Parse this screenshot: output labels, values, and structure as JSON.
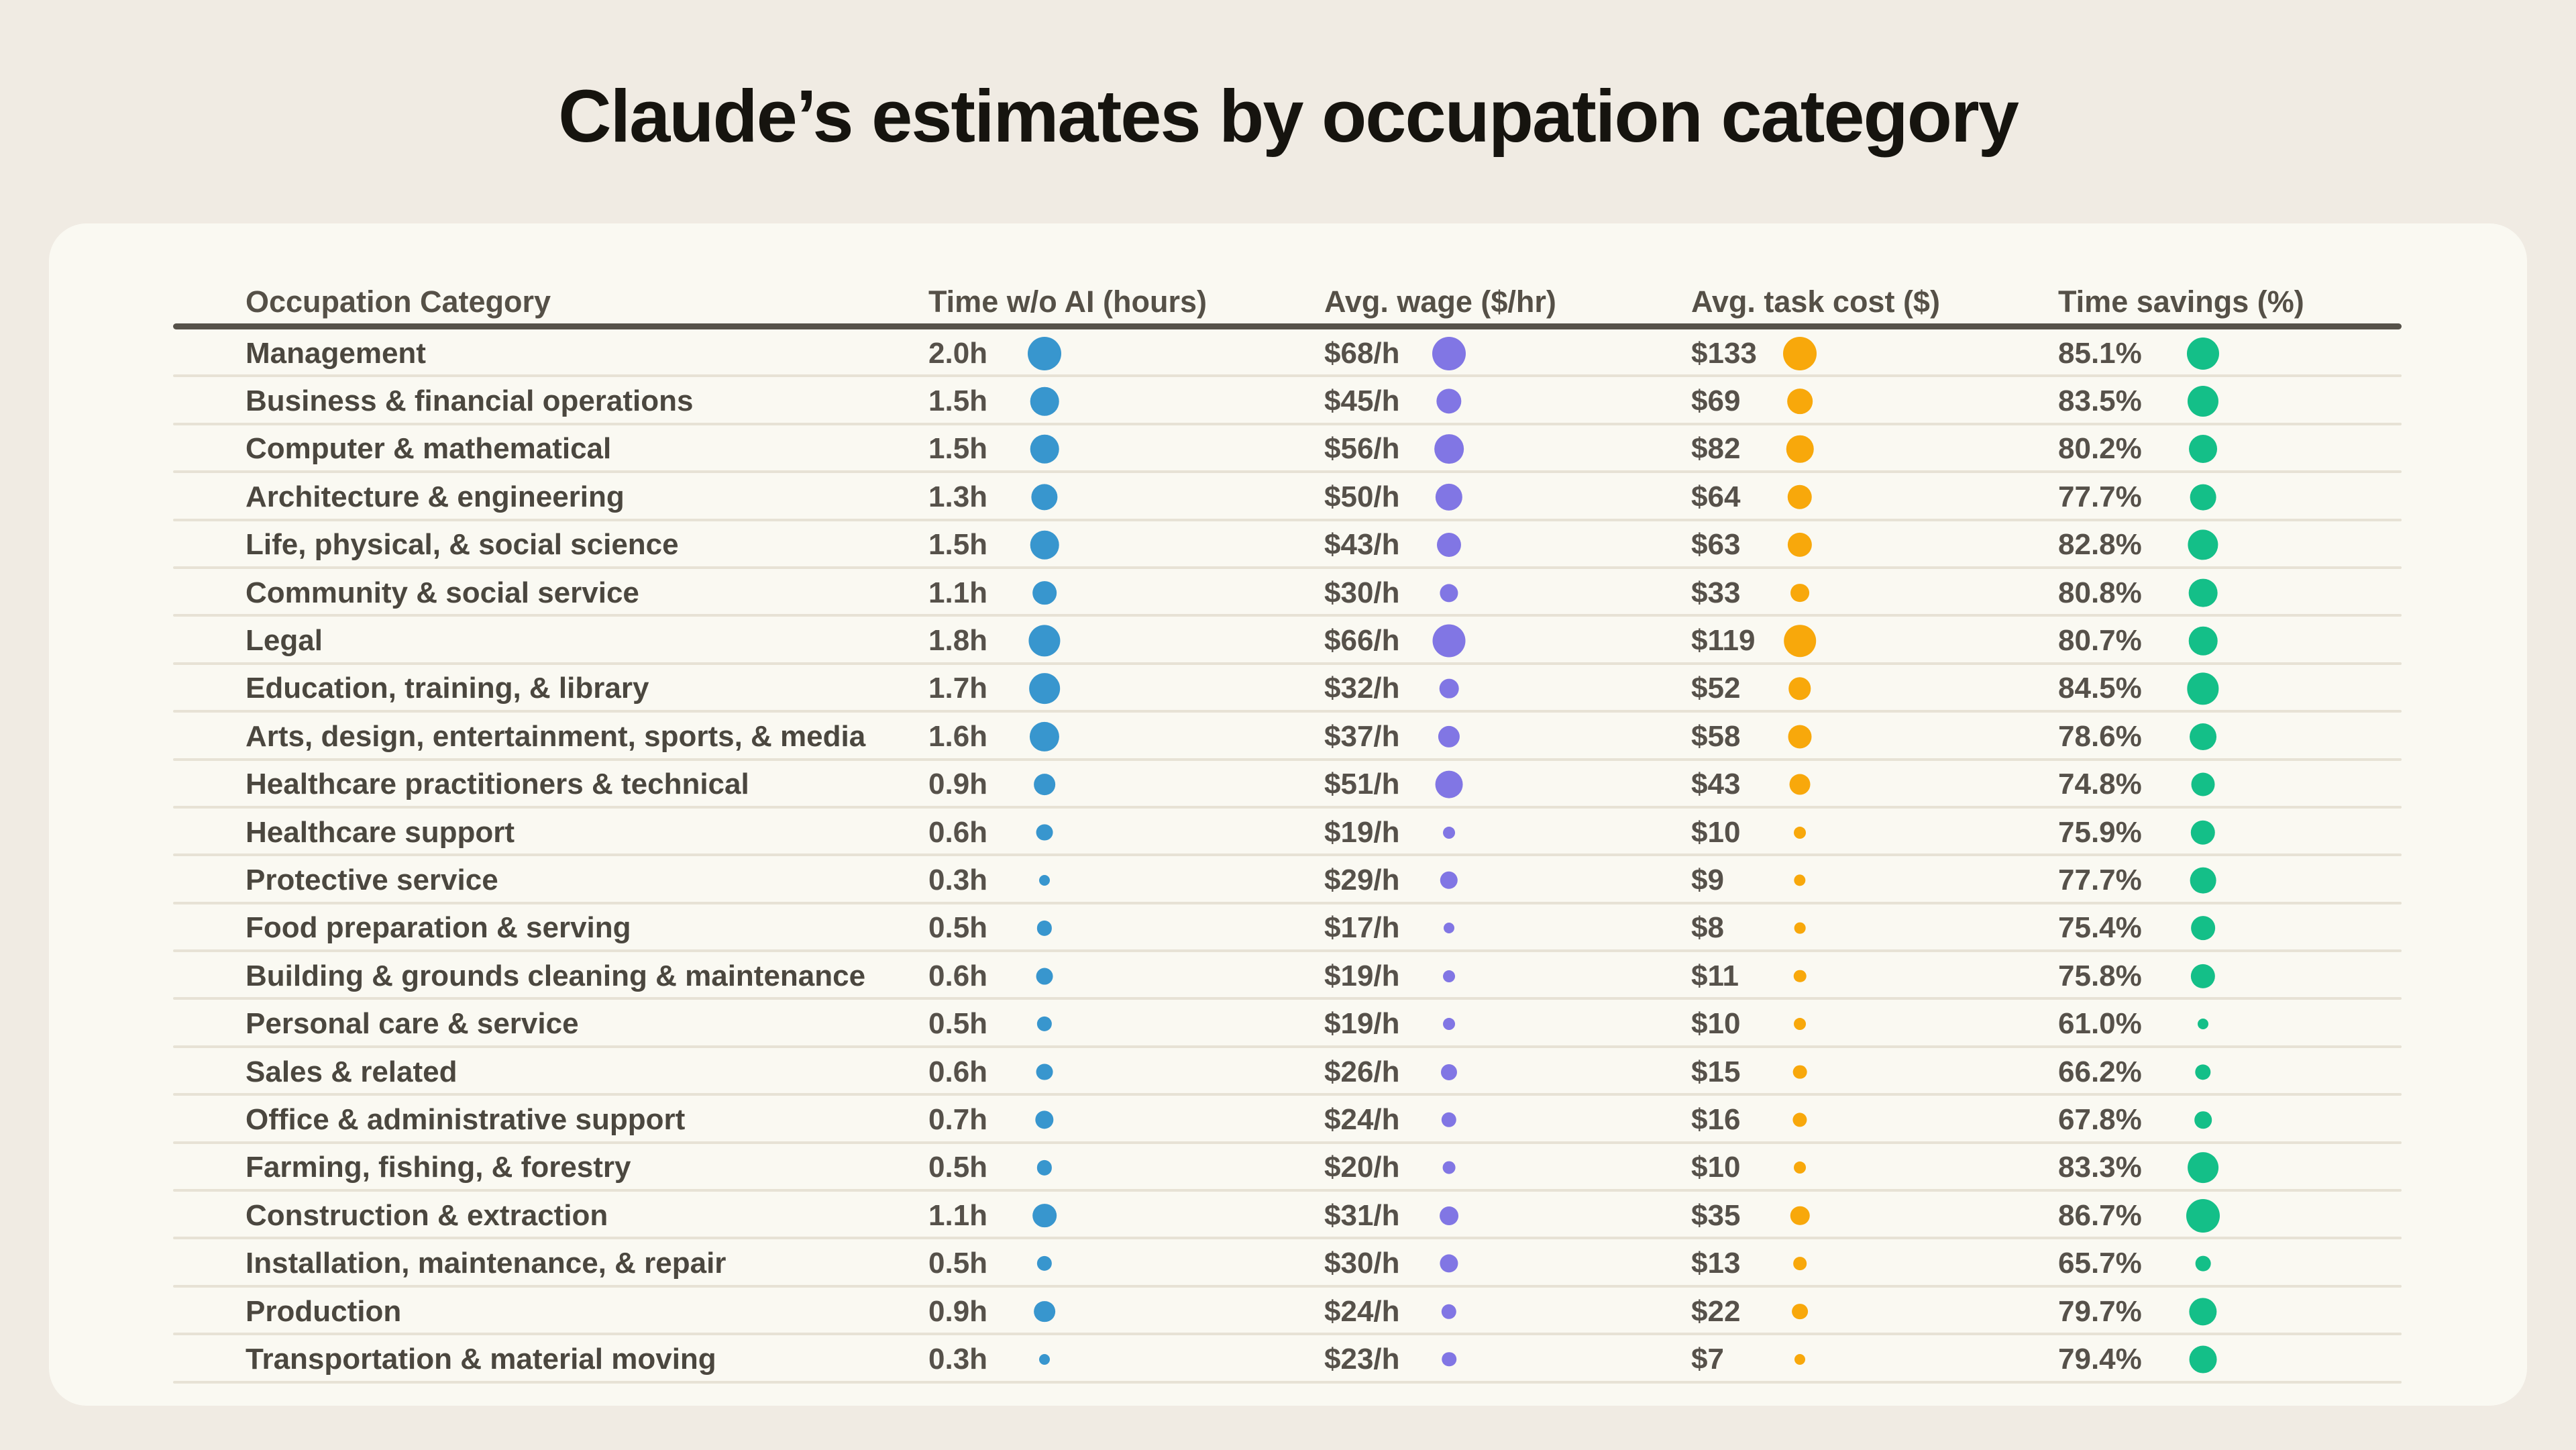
{
  "title": "Claude’s estimates by occupation category",
  "colors": {
    "time_dot": "#3896ce",
    "wage_dot": "#8176e4",
    "cost_dot": "#f8a80b",
    "savings_dot": "#14bf88",
    "page_bg": "#f0ebe3",
    "card_bg": "#faf9f2",
    "header_rule": "#56524a",
    "row_rule": "#e7e2d5",
    "title_text": "#16140f",
    "header_text": "#555047",
    "label_text": "#4b473f",
    "value_text": "#56514a"
  },
  "table": {
    "headers": [
      "Occupation Category",
      "Time w/o AI (hours)",
      "Avg. wage ($/hr)",
      "Avg. task cost ($)",
      "Time savings (%)"
    ],
    "rows": [
      {
        "label": "Management",
        "time": "2.0h",
        "time_v": 2.0,
        "wage": "$68/h",
        "wage_v": 68,
        "cost": "$133",
        "cost_v": 133,
        "savings": "85.1%",
        "savings_v": 85.1
      },
      {
        "label": "Business & financial operations",
        "time": "1.5h",
        "time_v": 1.5,
        "wage": "$45/h",
        "wage_v": 45,
        "cost": "$69",
        "cost_v": 69,
        "savings": "83.5%",
        "savings_v": 83.5
      },
      {
        "label": "Computer & mathematical",
        "time": "1.5h",
        "time_v": 1.5,
        "wage": "$56/h",
        "wage_v": 56,
        "cost": "$82",
        "cost_v": 82,
        "savings": "80.2%",
        "savings_v": 80.2
      },
      {
        "label": "Architecture & engineering",
        "time": "1.3h",
        "time_v": 1.3,
        "wage": "$50/h",
        "wage_v": 50,
        "cost": "$64",
        "cost_v": 64,
        "savings": "77.7%",
        "savings_v": 77.7
      },
      {
        "label": "Life, physical, & social science",
        "time": "1.5h",
        "time_v": 1.5,
        "wage": "$43/h",
        "wage_v": 43,
        "cost": "$63",
        "cost_v": 63,
        "savings": "82.8%",
        "savings_v": 82.8
      },
      {
        "label": "Community & social service",
        "time": "1.1h",
        "time_v": 1.1,
        "wage": "$30/h",
        "wage_v": 30,
        "cost": "$33",
        "cost_v": 33,
        "savings": "80.8%",
        "savings_v": 80.8
      },
      {
        "label": "Legal",
        "time": "1.8h",
        "time_v": 1.8,
        "wage": "$66/h",
        "wage_v": 66,
        "cost": "$119",
        "cost_v": 119,
        "savings": "80.7%",
        "savings_v": 80.7
      },
      {
        "label": "Education, training, & library",
        "time": "1.7h",
        "time_v": 1.7,
        "wage": "$32/h",
        "wage_v": 32,
        "cost": "$52",
        "cost_v": 52,
        "savings": "84.5%",
        "savings_v": 84.5
      },
      {
        "label": "Arts, design, entertainment, sports, & media",
        "time": "1.6h",
        "time_v": 1.6,
        "wage": "$37/h",
        "wage_v": 37,
        "cost": "$58",
        "cost_v": 58,
        "savings": "78.6%",
        "savings_v": 78.6
      },
      {
        "label": "Healthcare practitioners & technical",
        "time": "0.9h",
        "time_v": 0.9,
        "wage": "$51/h",
        "wage_v": 51,
        "cost": "$43",
        "cost_v": 43,
        "savings": "74.8%",
        "savings_v": 74.8
      },
      {
        "label": "Healthcare support",
        "time": "0.6h",
        "time_v": 0.6,
        "wage": "$19/h",
        "wage_v": 19,
        "cost": "$10",
        "cost_v": 10,
        "savings": "75.9%",
        "savings_v": 75.9
      },
      {
        "label": "Protective service",
        "time": "0.3h",
        "time_v": 0.3,
        "wage": "$29/h",
        "wage_v": 29,
        "cost": "$9",
        "cost_v": 9,
        "savings": "77.7%",
        "savings_v": 77.7
      },
      {
        "label": "Food preparation & serving",
        "time": "0.5h",
        "time_v": 0.5,
        "wage": "$17/h",
        "wage_v": 17,
        "cost": "$8",
        "cost_v": 8,
        "savings": "75.4%",
        "savings_v": 75.4
      },
      {
        "label": "Building & grounds cleaning & maintenance",
        "time": "0.6h",
        "time_v": 0.6,
        "wage": "$19/h",
        "wage_v": 19,
        "cost": "$11",
        "cost_v": 11,
        "savings": "75.8%",
        "savings_v": 75.8
      },
      {
        "label": "Personal care & service",
        "time": "0.5h",
        "time_v": 0.5,
        "wage": "$19/h",
        "wage_v": 19,
        "cost": "$10",
        "cost_v": 10,
        "savings": "61.0%",
        "savings_v": 61.0
      },
      {
        "label": "Sales & related",
        "time": "0.6h",
        "time_v": 0.6,
        "wage": "$26/h",
        "wage_v": 26,
        "cost": "$15",
        "cost_v": 15,
        "savings": "66.2%",
        "savings_v": 66.2
      },
      {
        "label": "Office & administrative support",
        "time": "0.7h",
        "time_v": 0.7,
        "wage": "$24/h",
        "wage_v": 24,
        "cost": "$16",
        "cost_v": 16,
        "savings": "67.8%",
        "savings_v": 67.8
      },
      {
        "label": "Farming, fishing, & forestry",
        "time": "0.5h",
        "time_v": 0.5,
        "wage": "$20/h",
        "wage_v": 20,
        "cost": "$10",
        "cost_v": 10,
        "savings": "83.3%",
        "savings_v": 83.3
      },
      {
        "label": "Construction & extraction",
        "time": "1.1h",
        "time_v": 1.1,
        "wage": "$31/h",
        "wage_v": 31,
        "cost": "$35",
        "cost_v": 35,
        "savings": "86.7%",
        "savings_v": 86.7
      },
      {
        "label": "Installation, maintenance, & repair",
        "time": "0.5h",
        "time_v": 0.5,
        "wage": "$30/h",
        "wage_v": 30,
        "cost": "$13",
        "cost_v": 13,
        "savings": "65.7%",
        "savings_v": 65.7
      },
      {
        "label": "Production",
        "time": "0.9h",
        "time_v": 0.9,
        "wage": "$24/h",
        "wage_v": 24,
        "cost": "$22",
        "cost_v": 22,
        "savings": "79.7%",
        "savings_v": 79.7
      },
      {
        "label": "Transportation & material moving",
        "time": "0.3h",
        "time_v": 0.3,
        "wage": "$23/h",
        "wage_v": 23,
        "cost": "$7",
        "cost_v": 7,
        "savings": "79.4%",
        "savings_v": 79.4
      }
    ]
  },
  "chart_data": {
    "type": "table",
    "title": "Claude’s estimates by occupation category",
    "columns": [
      "Occupation Category",
      "Time w/o AI (hours)",
      "Avg. wage ($/hr)",
      "Avg. task cost ($)",
      "Time savings (%)"
    ],
    "rows": [
      [
        "Management",
        2.0,
        68,
        133,
        85.1
      ],
      [
        "Business & financial operations",
        1.5,
        45,
        69,
        83.5
      ],
      [
        "Computer & mathematical",
        1.5,
        56,
        82,
        80.2
      ],
      [
        "Architecture & engineering",
        1.3,
        50,
        64,
        77.7
      ],
      [
        "Life, physical, & social science",
        1.5,
        43,
        63,
        82.8
      ],
      [
        "Community & social service",
        1.1,
        30,
        33,
        80.8
      ],
      [
        "Legal",
        1.8,
        66,
        119,
        80.7
      ],
      [
        "Education, training, & library",
        1.7,
        32,
        52,
        84.5
      ],
      [
        "Arts, design, entertainment, sports, & media",
        1.6,
        37,
        58,
        78.6
      ],
      [
        "Healthcare practitioners & technical",
        0.9,
        51,
        43,
        74.8
      ],
      [
        "Healthcare support",
        0.6,
        19,
        10,
        75.9
      ],
      [
        "Protective service",
        0.3,
        29,
        9,
        77.7
      ],
      [
        "Food preparation & serving",
        0.5,
        17,
        8,
        75.4
      ],
      [
        "Building & grounds cleaning & maintenance",
        0.6,
        19,
        11,
        75.8
      ],
      [
        "Personal care & service",
        0.5,
        19,
        10,
        61.0
      ],
      [
        "Sales & related",
        0.6,
        26,
        15,
        66.2
      ],
      [
        "Office & administrative support",
        0.7,
        24,
        16,
        67.8
      ],
      [
        "Farming, fishing, & forestry",
        0.5,
        20,
        10,
        83.3
      ],
      [
        "Construction & extraction",
        1.1,
        31,
        35,
        86.7
      ],
      [
        "Installation, maintenance, & repair",
        0.5,
        30,
        13,
        65.7
      ],
      [
        "Production",
        0.9,
        24,
        22,
        79.7
      ],
      [
        "Transportation & material moving",
        0.3,
        23,
        7,
        79.4
      ]
    ],
    "legend_position": "none",
    "grid": "horizontal-separators",
    "note": "Dot area next to each value is proportional to the value within its column (min-max sqrt scaling)."
  }
}
